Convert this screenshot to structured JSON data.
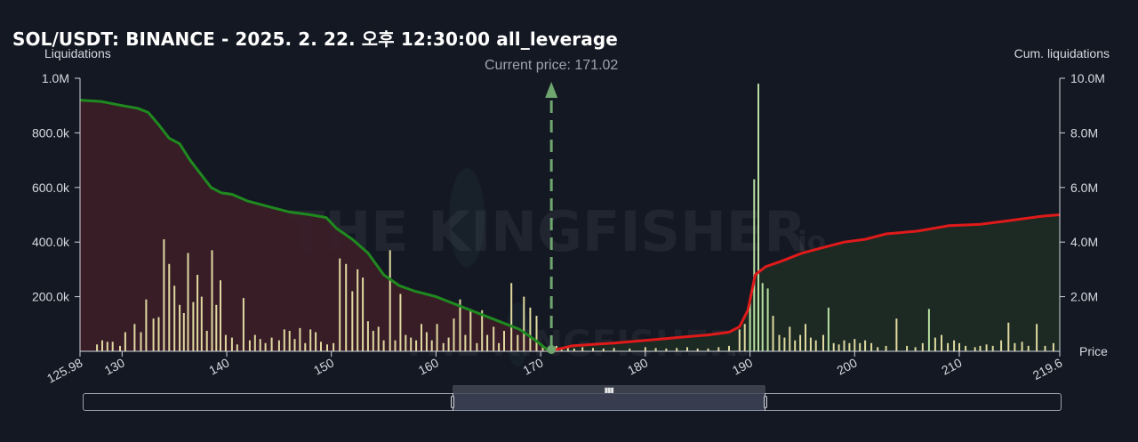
{
  "title": "SOL/USDT: BINANCE - 2025. 2. 22. 오후 12:30:00 all_leverage",
  "left_axis_label": "Liquidations",
  "right_axis_label": "Cum. liquidations",
  "x_axis_label": "Price",
  "current_price_label": "Current price: 171.02",
  "watermark_text": "THE KINGFISHER",
  "watermark_suffix": "io",
  "colors": {
    "background": "#141822",
    "short_cum_line": "#1f8a1f",
    "long_cum_line": "#e01a1a",
    "left_area": "#3a1e28",
    "right_area": "#1c2b24",
    "bar_yellow": "#e0d9a0",
    "bar_green": "#b8e0a0",
    "current_price_line": "#6fa56f"
  },
  "chart_data": {
    "type": "bar",
    "title": "SOL/USDT: BINANCE - 2025. 2. 22. 오후 12:30:00 all_leverage",
    "xlabel": "Price",
    "ylabel": "Liquidations",
    "y2label": "Cum. liquidations",
    "xlim": [
      125.98,
      219.6
    ],
    "ylim": [
      0,
      1000000
    ],
    "y2lim": [
      0,
      10000000
    ],
    "current_price": 171.02,
    "x_ticks": [
      {
        "v": 125.98,
        "label": "125.98"
      },
      {
        "v": 130,
        "label": "130"
      },
      {
        "v": 140,
        "label": "140"
      },
      {
        "v": 150,
        "label": "150"
      },
      {
        "v": 160,
        "label": "160"
      },
      {
        "v": 170,
        "label": "170"
      },
      {
        "v": 180,
        "label": "180"
      },
      {
        "v": 190,
        "label": "190"
      },
      {
        "v": 200,
        "label": "200"
      },
      {
        "v": 210,
        "label": "210"
      },
      {
        "v": 219.6,
        "label": "219.6"
      }
    ],
    "y_ticks": [
      {
        "v": 200000,
        "label": "200.0k"
      },
      {
        "v": 400000,
        "label": "400.0k"
      },
      {
        "v": 600000,
        "label": "600.0k"
      },
      {
        "v": 800000,
        "label": "800.0k"
      },
      {
        "v": 1000000,
        "label": "1.0M"
      }
    ],
    "y2_ticks": [
      {
        "v": 2000000,
        "label": "2.0M"
      },
      {
        "v": 4000000,
        "label": "4.0M"
      },
      {
        "v": 6000000,
        "label": "6.0M"
      },
      {
        "v": 8000000,
        "label": "8.0M"
      },
      {
        "v": 10000000,
        "label": "10.0M"
      }
    ],
    "short_liquidations": [
      [
        127.6,
        25000
      ],
      [
        128.1,
        40000
      ],
      [
        128.6,
        35000
      ],
      [
        129.1,
        35000
      ],
      [
        129.8,
        20000
      ],
      [
        130.3,
        70000
      ],
      [
        131.2,
        100000
      ],
      [
        131.8,
        70000
      ],
      [
        132.3,
        190000
      ],
      [
        133.0,
        120000
      ],
      [
        133.5,
        125000
      ],
      [
        134.0,
        410000
      ],
      [
        134.5,
        320000
      ],
      [
        135.0,
        240000
      ],
      [
        135.5,
        170000
      ],
      [
        135.9,
        140000
      ],
      [
        136.3,
        360000
      ],
      [
        136.8,
        180000
      ],
      [
        137.2,
        280000
      ],
      [
        137.6,
        200000
      ],
      [
        138.1,
        75000
      ],
      [
        138.6,
        370000
      ],
      [
        139.0,
        170000
      ],
      [
        139.4,
        260000
      ],
      [
        139.9,
        60000
      ],
      [
        140.5,
        50000
      ],
      [
        141.0,
        25000
      ],
      [
        141.6,
        195000
      ],
      [
        142.2,
        40000
      ],
      [
        142.7,
        60000
      ],
      [
        143.2,
        45000
      ],
      [
        143.7,
        30000
      ],
      [
        144.3,
        50000
      ],
      [
        145.0,
        40000
      ],
      [
        145.5,
        80000
      ],
      [
        146.0,
        75000
      ],
      [
        146.5,
        45000
      ],
      [
        147.0,
        85000
      ],
      [
        147.5,
        30000
      ],
      [
        148.0,
        80000
      ],
      [
        148.5,
        70000
      ],
      [
        149.0,
        35000
      ],
      [
        149.6,
        25000
      ],
      [
        150.2,
        30000
      ],
      [
        150.8,
        340000
      ],
      [
        151.4,
        320000
      ],
      [
        152.0,
        220000
      ],
      [
        152.5,
        300000
      ],
      [
        153.0,
        270000
      ],
      [
        153.5,
        110000
      ],
      [
        154.0,
        75000
      ],
      [
        154.5,
        90000
      ],
      [
        155.0,
        40000
      ],
      [
        155.6,
        370000
      ],
      [
        156.1,
        40000
      ],
      [
        156.6,
        210000
      ],
      [
        157.1,
        60000
      ],
      [
        157.6,
        50000
      ],
      [
        158.1,
        40000
      ],
      [
        158.6,
        100000
      ],
      [
        159.1,
        70000
      ],
      [
        159.6,
        40000
      ],
      [
        160.1,
        100000
      ],
      [
        160.7,
        30000
      ],
      [
        161.2,
        50000
      ],
      [
        161.7,
        120000
      ],
      [
        162.3,
        190000
      ],
      [
        162.8,
        60000
      ],
      [
        163.3,
        150000
      ],
      [
        163.9,
        30000
      ],
      [
        164.4,
        150000
      ],
      [
        164.9,
        60000
      ],
      [
        165.5,
        90000
      ],
      [
        166.0,
        30000
      ],
      [
        166.5,
        75000
      ],
      [
        167.2,
        250000
      ],
      [
        167.8,
        60000
      ],
      [
        168.4,
        200000
      ],
      [
        169.0,
        160000
      ],
      [
        169.6,
        130000
      ],
      [
        170.2,
        20000
      ],
      [
        170.8,
        15000
      ]
    ],
    "long_liquidations": [
      [
        171.5,
        20000
      ],
      [
        172.0,
        15000
      ],
      [
        172.6,
        12000
      ],
      [
        173.2,
        10000
      ],
      [
        174.0,
        15000
      ],
      [
        175.0,
        12000
      ],
      [
        176.0,
        10000
      ],
      [
        177.0,
        12000
      ],
      [
        178.5,
        10000
      ],
      [
        180.0,
        15000
      ],
      [
        181.0,
        12000
      ],
      [
        182.0,
        10000
      ],
      [
        183.0,
        12000
      ],
      [
        184.0,
        15000
      ],
      [
        185.0,
        10000
      ],
      [
        186.0,
        10000
      ],
      [
        187.0,
        15000
      ],
      [
        188.0,
        20000
      ],
      [
        189.0,
        80000
      ],
      [
        189.5,
        100000
      ],
      [
        190.0,
        180000
      ],
      [
        190.4,
        630000
      ],
      [
        190.8,
        980000
      ],
      [
        191.2,
        250000
      ],
      [
        191.7,
        230000
      ],
      [
        192.2,
        130000
      ],
      [
        192.8,
        60000
      ],
      [
        193.3,
        50000
      ],
      [
        193.8,
        90000
      ],
      [
        194.3,
        40000
      ],
      [
        194.8,
        60000
      ],
      [
        195.3,
        100000
      ],
      [
        195.8,
        50000
      ],
      [
        196.3,
        40000
      ],
      [
        197.0,
        60000
      ],
      [
        197.5,
        160000
      ],
      [
        198.0,
        30000
      ],
      [
        198.5,
        25000
      ],
      [
        199.0,
        40000
      ],
      [
        199.5,
        30000
      ],
      [
        200.0,
        45000
      ],
      [
        200.5,
        30000
      ],
      [
        201.0,
        40000
      ],
      [
        201.6,
        30000
      ],
      [
        202.2,
        15000
      ],
      [
        203.0,
        20000
      ],
      [
        204.0,
        120000
      ],
      [
        205.0,
        20000
      ],
      [
        205.8,
        15000
      ],
      [
        206.5,
        30000
      ],
      [
        207.1,
        155000
      ],
      [
        207.7,
        50000
      ],
      [
        208.3,
        60000
      ],
      [
        208.9,
        30000
      ],
      [
        209.5,
        40000
      ],
      [
        210.0,
        30000
      ],
      [
        210.6,
        20000
      ],
      [
        211.5,
        15000
      ],
      [
        212.0,
        20000
      ],
      [
        212.6,
        25000
      ],
      [
        213.2,
        20000
      ],
      [
        214.0,
        40000
      ],
      [
        214.7,
        105000
      ],
      [
        215.3,
        30000
      ],
      [
        216.0,
        35000
      ],
      [
        216.6,
        20000
      ],
      [
        217.4,
        100000
      ],
      [
        218.2,
        20000
      ],
      [
        219.0,
        30000
      ]
    ],
    "short_cum_curve": [
      [
        126.0,
        9200000
      ],
      [
        128.0,
        9150000
      ],
      [
        130.0,
        9000000
      ],
      [
        131.5,
        8900000
      ],
      [
        132.5,
        8750000
      ],
      [
        133.5,
        8300000
      ],
      [
        134.5,
        7800000
      ],
      [
        135.5,
        7600000
      ],
      [
        136.5,
        7000000
      ],
      [
        137.5,
        6500000
      ],
      [
        138.5,
        6000000
      ],
      [
        139.5,
        5800000
      ],
      [
        140.5,
        5750000
      ],
      [
        142.0,
        5500000
      ],
      [
        144.0,
        5300000
      ],
      [
        146.0,
        5100000
      ],
      [
        148.0,
        5000000
      ],
      [
        149.5,
        4900000
      ],
      [
        150.5,
        4500000
      ],
      [
        152.0,
        4100000
      ],
      [
        153.5,
        3600000
      ],
      [
        155.0,
        2800000
      ],
      [
        156.5,
        2400000
      ],
      [
        158.0,
        2200000
      ],
      [
        160.0,
        2000000
      ],
      [
        162.0,
        1700000
      ],
      [
        164.0,
        1400000
      ],
      [
        166.0,
        1100000
      ],
      [
        168.0,
        800000
      ],
      [
        169.5,
        400000
      ],
      [
        170.5,
        100000
      ],
      [
        171.0,
        20000
      ]
    ],
    "long_cum_curve": [
      [
        171.0,
        20000
      ],
      [
        173.0,
        200000
      ],
      [
        175.0,
        250000
      ],
      [
        177.0,
        300000
      ],
      [
        180.0,
        400000
      ],
      [
        183.0,
        500000
      ],
      [
        186.0,
        600000
      ],
      [
        188.0,
        700000
      ],
      [
        189.0,
        900000
      ],
      [
        189.8,
        1500000
      ],
      [
        190.5,
        2800000
      ],
      [
        191.5,
        3100000
      ],
      [
        193.0,
        3300000
      ],
      [
        195.0,
        3600000
      ],
      [
        197.0,
        3800000
      ],
      [
        199.0,
        4000000
      ],
      [
        201.0,
        4100000
      ],
      [
        203.0,
        4300000
      ],
      [
        206.0,
        4400000
      ],
      [
        209.0,
        4600000
      ],
      [
        212.0,
        4650000
      ],
      [
        214.0,
        4750000
      ],
      [
        216.0,
        4850000
      ],
      [
        218.0,
        4950000
      ],
      [
        219.6,
        5000000
      ]
    ],
    "navigator_range": [
      161.3,
      191.3
    ]
  }
}
